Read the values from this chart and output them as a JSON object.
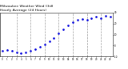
{
  "title": "Milwaukee Weather Wind Chill",
  "subtitle": "Hourly Average",
  "subtitle2": "(24 Hours)",
  "dot_color": "#0000dd",
  "bg_color": "#ffffff",
  "grid_color": "#999999",
  "hours": [
    0,
    1,
    2,
    3,
    4,
    5,
    6,
    7,
    8,
    9,
    10,
    11,
    12,
    13,
    14,
    15,
    16,
    17,
    18,
    19,
    20,
    21,
    22,
    23
  ],
  "wind_chill": [
    -5,
    -4,
    -5,
    -6,
    -7,
    -6,
    -5,
    -3,
    -1,
    1,
    4,
    7,
    11,
    15,
    18,
    21,
    23,
    24,
    23,
    25,
    26,
    25,
    27,
    26
  ],
  "ylim": [
    -10,
    30
  ],
  "xlim": [
    -0.5,
    23.5
  ],
  "xlabel_ticks": [
    0,
    1,
    2,
    3,
    4,
    5,
    6,
    7,
    8,
    9,
    10,
    11,
    12,
    13,
    14,
    15,
    16,
    17,
    18,
    19,
    20,
    21,
    22,
    23
  ],
  "ylabel_ticks": [
    -10,
    0,
    10,
    20,
    30
  ],
  "grid_vlines": [
    3,
    6,
    9,
    12,
    15,
    18,
    21
  ]
}
